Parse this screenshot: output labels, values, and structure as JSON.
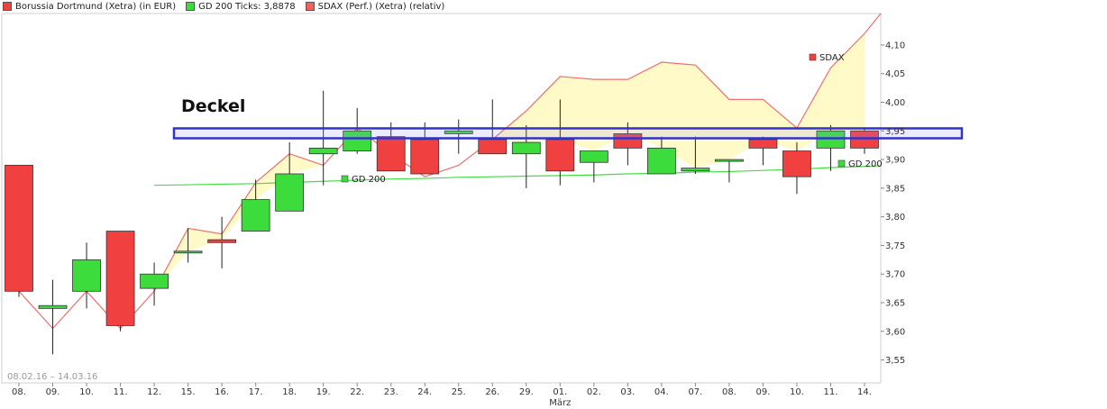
{
  "legend": {
    "items": [
      {
        "label": "Borussia Dortmund (Xetra) (in EUR)",
        "color": "#f04040"
      },
      {
        "label": "GD 200 Ticks: 3,8878",
        "color": "#3bdc3b"
      },
      {
        "label": "SDAX (Perf.) (Xetra) (relativ)",
        "color": "#f06060"
      }
    ]
  },
  "chart_data": {
    "type": "candlestick",
    "date_range": "08.02.16 – 14.03.16",
    "month_label": "März",
    "ylim": [
      3.51,
      4.155
    ],
    "y_ticks": [
      "4,10",
      "4,05",
      "4,00",
      "3,95",
      "3,90",
      "3,85",
      "3,80",
      "3,75",
      "3,70",
      "3,65",
      "3,60",
      "3,55"
    ],
    "categories": [
      "08.",
      "09.",
      "10.",
      "11.",
      "12.",
      "15.",
      "16.",
      "17.",
      "18.",
      "19.",
      "22.",
      "23.",
      "24.",
      "25.",
      "26.",
      "29.",
      "01.",
      "02.",
      "03.",
      "04.",
      "07.",
      "08.",
      "09.",
      "10.",
      "11.",
      "14."
    ],
    "candles": [
      {
        "o": 3.89,
        "h": 3.89,
        "l": 3.66,
        "c": 3.67
      },
      {
        "o": 3.64,
        "h": 3.69,
        "l": 3.56,
        "c": 3.645
      },
      {
        "o": 3.67,
        "h": 3.755,
        "l": 3.64,
        "c": 3.725
      },
      {
        "o": 3.775,
        "h": 3.775,
        "l": 3.6,
        "c": 3.61
      },
      {
        "o": 3.675,
        "h": 3.72,
        "l": 3.645,
        "c": 3.7
      },
      {
        "o": 3.74,
        "h": 3.78,
        "l": 3.72,
        "c": 3.74
      },
      {
        "o": 3.76,
        "h": 3.8,
        "l": 3.71,
        "c": 3.755
      },
      {
        "o": 3.775,
        "h": 3.865,
        "l": 3.775,
        "c": 3.83
      },
      {
        "o": 3.81,
        "h": 3.93,
        "l": 3.81,
        "c": 3.875
      },
      {
        "o": 3.91,
        "h": 4.02,
        "l": 3.855,
        "c": 3.92
      },
      {
        "o": 3.915,
        "h": 3.99,
        "l": 3.91,
        "c": 3.95
      },
      {
        "o": 3.94,
        "h": 3.965,
        "l": 3.88,
        "c": 3.88
      },
      {
        "o": 3.935,
        "h": 3.965,
        "l": 3.875,
        "c": 3.875
      },
      {
        "o": 3.945,
        "h": 3.97,
        "l": 3.91,
        "c": 3.95
      },
      {
        "o": 3.935,
        "h": 4.005,
        "l": 3.91,
        "c": 3.91
      },
      {
        "o": 3.91,
        "h": 3.96,
        "l": 3.85,
        "c": 3.93
      },
      {
        "o": 3.935,
        "h": 4.005,
        "l": 3.855,
        "c": 3.88
      },
      {
        "o": 3.895,
        "h": 3.915,
        "l": 3.86,
        "c": 3.915
      },
      {
        "o": 3.945,
        "h": 3.965,
        "l": 3.89,
        "c": 3.92
      },
      {
        "o": 3.875,
        "h": 3.94,
        "l": 3.875,
        "c": 3.92
      },
      {
        "o": 3.88,
        "h": 3.94,
        "l": 3.875,
        "c": 3.885
      },
      {
        "o": 3.9,
        "h": 3.9,
        "l": 3.86,
        "c": 3.9
      },
      {
        "o": 3.935,
        "h": 3.94,
        "l": 3.89,
        "c": 3.92
      },
      {
        "o": 3.915,
        "h": 3.93,
        "l": 3.84,
        "c": 3.87
      },
      {
        "o": 3.92,
        "h": 3.96,
        "l": 3.88,
        "c": 3.95
      },
      {
        "o": 3.95,
        "h": 3.955,
        "l": 3.91,
        "c": 3.92
      }
    ],
    "series": [
      {
        "name": "GD 200",
        "values": [
          null,
          null,
          null,
          null,
          3.855,
          3.856,
          3.857,
          3.858,
          3.86,
          3.862,
          3.864,
          3.866,
          3.867,
          3.869,
          3.87,
          3.871,
          3.872,
          3.873,
          3.875,
          3.876,
          3.878,
          3.879,
          3.881,
          3.883,
          3.886,
          3.888
        ]
      },
      {
        "name": "SDAX",
        "values": [
          3.67,
          3.605,
          3.67,
          3.605,
          3.67,
          3.78,
          3.77,
          3.86,
          3.91,
          3.89,
          3.955,
          3.91,
          3.87,
          3.89,
          3.935,
          3.985,
          4.045,
          4.04,
          4.04,
          4.07,
          4.065,
          4.005,
          4.005,
          3.955,
          4.06,
          4.12
        ]
      }
    ],
    "annotations": {
      "deckel_label": "Deckel",
      "deckel_level": 3.945,
      "gd200_label_mid": "GD 200",
      "gd200_label_end": "GD 200",
      "sdax_label": "SDAX"
    },
    "colors": {
      "up": "#3bdc3b",
      "down": "#f04040",
      "sdax_line": "#f07070",
      "sdax_fill": "#fffac8",
      "gd200": "#44dd44",
      "deckel": "#3333cc"
    }
  }
}
